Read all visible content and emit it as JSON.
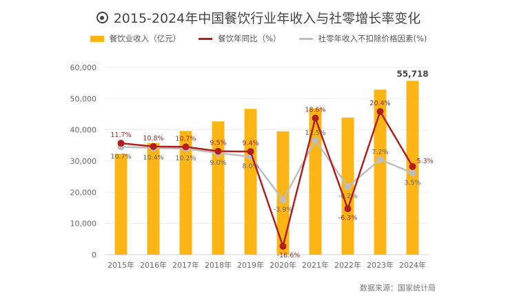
{
  "title": "2015-2024年中国餐饮行业年收入与社零增长率变化",
  "source": "数据来源：国家统计局",
  "colors": {
    "bar": "#FDB515",
    "red": "#B01E1E",
    "gray": "#BDBDBD"
  },
  "chart_data": {
    "type": "bar+line",
    "title": "2015-2024年中国餐饮行业年收入与社零增长率变化",
    "categories": [
      "2015年",
      "2016年",
      "2017年",
      "2018年",
      "2019年",
      "2020年",
      "2021年",
      "2022年",
      "2023年",
      "2024年"
    ],
    "series": [
      {
        "name": "餐饮业收入（亿元）",
        "type": "bar",
        "axis": "left",
        "values": [
          32310,
          35799,
          39644,
          42716,
          46721,
          39527,
          46895,
          43941,
          52890,
          55718
        ],
        "labels": [
          "",
          "",
          "",
          "",
          "",
          "",
          "",
          "",
          "",
          "55,718"
        ]
      },
      {
        "name": "餐饮年同比（%）",
        "type": "line",
        "axis": "right",
        "values": [
          11.7,
          10.8,
          10.7,
          9.5,
          9.4,
          -16.6,
          18.6,
          -6.3,
          20.4,
          5.3
        ],
        "labels": [
          "11.7%",
          "10.8%",
          "10.7%",
          "9.5%",
          "9.4%",
          "-16.6%",
          "18.6%",
          "-6.3%",
          "20.4%",
          "5.3%"
        ]
      },
      {
        "name": "社零年收入不扣除价格因素(%)",
        "type": "line",
        "axis": "right",
        "values": [
          10.7,
          10.4,
          10.2,
          9.0,
          8.0,
          -3.9,
          12.5,
          -0.2,
          7.2,
          3.5
        ],
        "labels": [
          "10.7%",
          "10.4%",
          "10.2%",
          "9.0%",
          "8.0%",
          "-3.9%",
          "12.5%",
          "-0.2%",
          "7.2%",
          "3.5%"
        ]
      }
    ],
    "yticks": [
      "0",
      "10,000",
      "20,000",
      "30,000",
      "40,000",
      "50,000",
      "60,000"
    ],
    "ylim": [
      0,
      60000
    ],
    "y2lim": [
      -18.9,
      32.5
    ],
    "grid": true,
    "legend": "top-center"
  }
}
